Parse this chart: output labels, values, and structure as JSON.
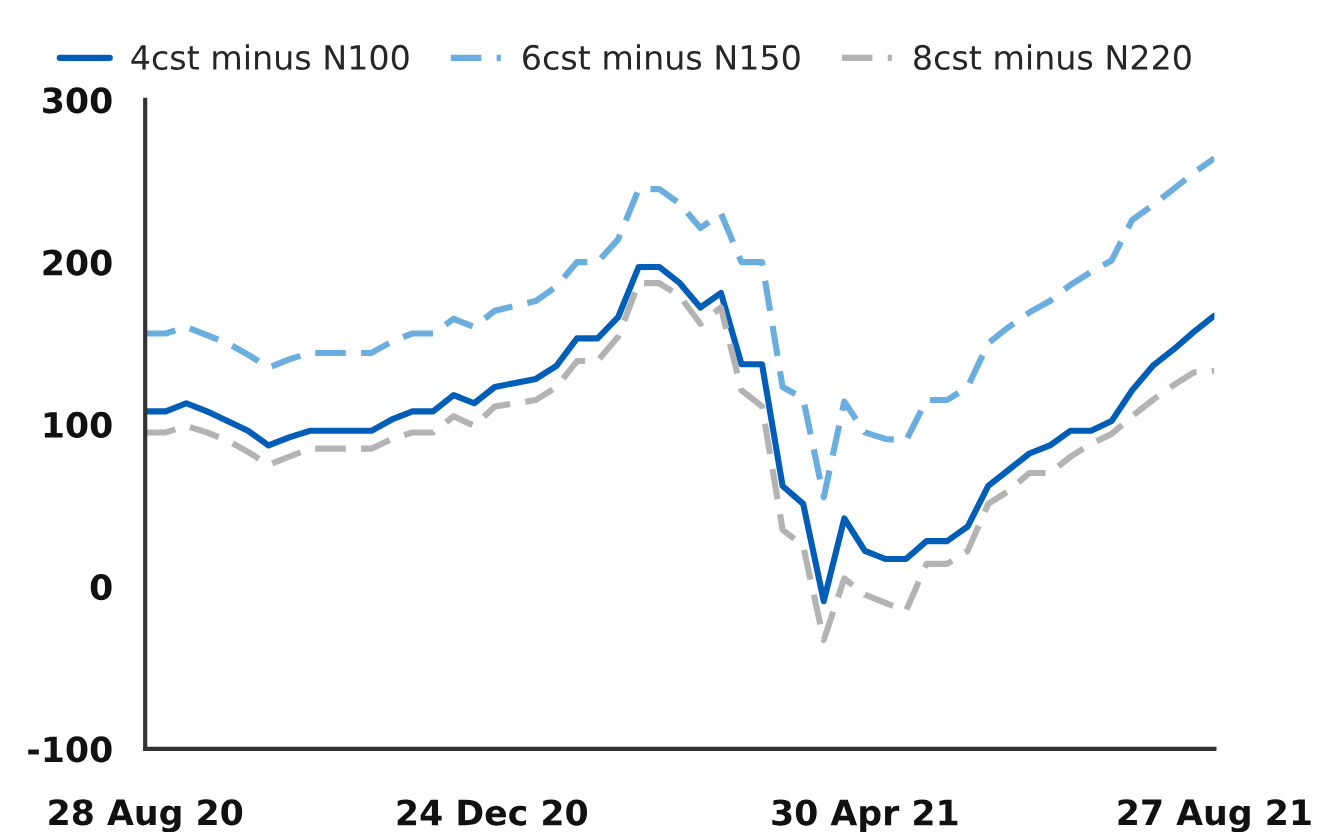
{
  "chart_data": {
    "type": "line",
    "x": [
      "2020-08-28",
      "2020-09-04",
      "2020-09-11",
      "2020-09-18",
      "2020-09-25",
      "2020-10-02",
      "2020-10-09",
      "2020-10-16",
      "2020-10-23",
      "2020-10-30",
      "2020-11-06",
      "2020-11-13",
      "2020-11-20",
      "2020-11-27",
      "2020-12-04",
      "2020-12-11",
      "2020-12-18",
      "2020-12-25",
      "2021-01-08",
      "2021-01-15",
      "2021-01-22",
      "2021-01-29",
      "2021-02-05",
      "2021-02-12",
      "2021-02-19",
      "2021-02-26",
      "2021-03-05",
      "2021-03-12",
      "2021-03-19",
      "2021-03-26",
      "2021-04-02",
      "2021-04-09",
      "2021-04-16",
      "2021-04-23",
      "2021-04-30",
      "2021-05-07",
      "2021-05-14",
      "2021-05-21",
      "2021-05-28",
      "2021-06-04",
      "2021-06-11",
      "2021-06-18",
      "2021-06-25",
      "2021-07-02",
      "2021-07-09",
      "2021-07-16",
      "2021-07-23",
      "2021-07-30",
      "2021-08-06",
      "2021-08-13",
      "2021-08-20",
      "2021-08-27"
    ],
    "series": [
      {
        "name": "4cst minus N100",
        "color": "#005eb8",
        "line_style": "solid",
        "values": [
          108,
          108,
          113,
          108,
          102,
          96,
          87,
          92,
          96,
          96,
          96,
          96,
          103,
          108,
          108,
          118,
          113,
          123,
          128,
          136,
          153,
          153,
          166,
          197,
          197,
          187,
          172,
          181,
          137,
          137,
          62,
          51,
          -9,
          42,
          22,
          17,
          17,
          28,
          28,
          37,
          62,
          72,
          82,
          87,
          96,
          96,
          102,
          121,
          136,
          146,
          157,
          167
        ]
      },
      {
        "name": "6cst minus N150",
        "color": "#6aaee0",
        "line_style": "dashed",
        "values": [
          156,
          156,
          160,
          155,
          150,
          143,
          135,
          140,
          144,
          144,
          144,
          144,
          151,
          156,
          156,
          165,
          160,
          170,
          176,
          185,
          200,
          200,
          214,
          245,
          245,
          236,
          221,
          230,
          200,
          200,
          123,
          116,
          55,
          114,
          95,
          91,
          90,
          115,
          115,
          123,
          150,
          160,
          169,
          176,
          186,
          194,
          201,
          226,
          235,
          245,
          255,
          264
        ]
      },
      {
        "name": "8cst minus N220",
        "color": "#b3b3b3",
        "line_style": "dashed",
        "values": [
          95,
          95,
          99,
          95,
          90,
          83,
          75,
          80,
          85,
          85,
          85,
          85,
          91,
          95,
          95,
          105,
          99,
          111,
          115,
          123,
          139,
          139,
          154,
          187,
          187,
          179,
          162,
          172,
          121,
          111,
          35,
          25,
          -33,
          5,
          -5,
          -10,
          -15,
          14,
          14,
          22,
          51,
          59,
          70,
          70,
          80,
          88,
          94,
          105,
          115,
          124,
          132,
          133
        ]
      }
    ],
    "xlim": [
      "2020-08-28",
      "2021-08-27"
    ],
    "xticks": [
      {
        "value": "2020-08-28",
        "label": "28 Aug 20"
      },
      {
        "value": "2020-12-24",
        "label": "24 Dec 20"
      },
      {
        "value": "2021-04-30",
        "label": "30 Apr 21"
      },
      {
        "value": "2021-08-27",
        "label": "27 Aug 21"
      }
    ],
    "ylim": [
      -100,
      300
    ],
    "yticks": [
      -100,
      0,
      100,
      200,
      300
    ],
    "grid": false,
    "legend": "top"
  }
}
